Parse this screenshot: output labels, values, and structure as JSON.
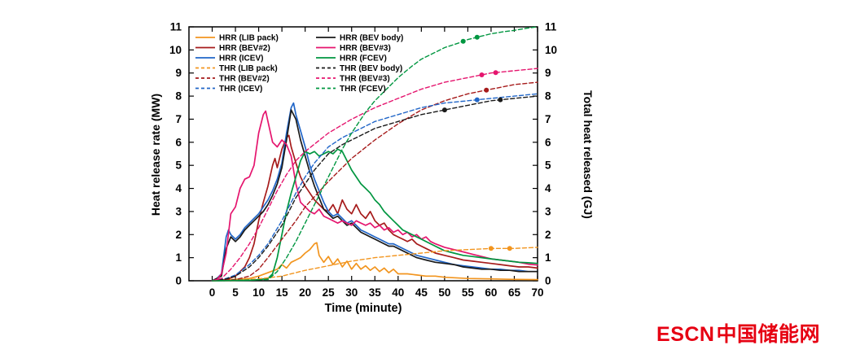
{
  "watermark": {
    "brand": "ESCN",
    "brand_cn": "中国储能网",
    "color": "#e60012"
  },
  "chart_data": {
    "type": "line",
    "title": "",
    "xlabel": "Time (minute)",
    "ylabel_left": "Heat release rate (MW)",
    "ylabel_right": "Total heat released (GJ)",
    "xlim": [
      -5,
      70
    ],
    "ylim": [
      0,
      11
    ],
    "x_ticks": [
      0,
      5,
      10,
      15,
      20,
      25,
      30,
      35,
      40,
      45,
      50,
      55,
      60,
      65,
      70
    ],
    "y_ticks": [
      0,
      1,
      2,
      3,
      4,
      5,
      6,
      7,
      8,
      9,
      10,
      11
    ],
    "grid": false,
    "legend": {
      "position": "top-left",
      "columns": [
        [
          "HRR (LIB pack)",
          "HRR (BEV#2)",
          "HRR (ICEV)",
          "THR (LIB pack)",
          "THR (BEV#2)",
          "THR (ICEV)"
        ],
        [
          "HRR (BEV body)",
          "HRR (BEV#3)",
          "HRR (FCEV)",
          "THR (BEV body)",
          "THR (BEV#3)",
          "THR (FCEV)"
        ]
      ]
    },
    "series": [
      {
        "name": "HRR (LIB pack)",
        "axis": "left",
        "dash": false,
        "color": "#f2951f",
        "x": [
          0,
          4,
          8,
          10,
          12,
          14,
          15,
          16,
          17,
          18,
          19,
          20,
          21,
          22,
          22.5,
          23,
          24,
          25,
          26,
          27,
          28,
          29,
          30,
          31,
          32,
          33,
          34,
          35,
          36,
          37,
          38,
          39,
          40,
          42,
          44,
          46,
          48,
          50,
          55,
          60,
          65,
          70
        ],
        "y": [
          0,
          0.05,
          0.1,
          0.2,
          0.35,
          0.5,
          0.7,
          0.55,
          0.8,
          0.9,
          1.0,
          1.2,
          1.35,
          1.6,
          1.65,
          1.1,
          0.8,
          1.05,
          0.7,
          0.95,
          0.6,
          0.85,
          0.5,
          0.75,
          0.5,
          0.65,
          0.45,
          0.6,
          0.4,
          0.55,
          0.35,
          0.5,
          0.3,
          0.3,
          0.25,
          0.2,
          0.2,
          0.15,
          0.1,
          0.08,
          0.06,
          0.05
        ]
      },
      {
        "name": "HRR (BEV#2)",
        "axis": "left",
        "dash": false,
        "color": "#a61b1b",
        "x": [
          0,
          3,
          5,
          7,
          8,
          9,
          10,
          11,
          12,
          13,
          13.5,
          14,
          15,
          16,
          16.5,
          17,
          18,
          19,
          20,
          21,
          22,
          23,
          24,
          25,
          26,
          27,
          28,
          29,
          30,
          31,
          32,
          33,
          34,
          35,
          36,
          37,
          38,
          39,
          40,
          41,
          42,
          43,
          44,
          45,
          46,
          48,
          50,
          52,
          54,
          56,
          58,
          60,
          62,
          64,
          66,
          68,
          70
        ],
        "y": [
          0,
          0.05,
          0.2,
          0.6,
          1.0,
          1.6,
          2.6,
          3.4,
          4.1,
          5.0,
          5.3,
          4.9,
          5.7,
          6.2,
          6.3,
          5.8,
          5.1,
          4.5,
          4.1,
          3.8,
          3.5,
          3.3,
          3.1,
          3.0,
          3.3,
          2.9,
          3.5,
          3.1,
          2.9,
          3.3,
          2.9,
          2.7,
          3.0,
          2.6,
          2.4,
          2.5,
          2.2,
          2.0,
          1.9,
          1.8,
          1.7,
          1.8,
          1.6,
          1.5,
          1.4,
          1.2,
          1.1,
          1.0,
          0.9,
          0.85,
          0.8,
          0.75,
          0.7,
          0.65,
          0.6,
          0.6,
          0.55
        ]
      },
      {
        "name": "HRR (ICEV)",
        "axis": "left",
        "dash": false,
        "color": "#2166c8",
        "x": [
          0,
          1,
          2,
          3,
          3.5,
          4,
          5,
          6,
          7,
          8,
          9,
          10,
          11,
          12,
          13,
          14,
          15,
          16,
          17,
          17.5,
          18,
          19,
          20,
          21,
          22,
          23,
          24,
          25,
          26,
          27,
          28,
          29,
          30,
          31,
          32,
          33,
          34,
          35,
          36,
          37,
          38,
          39,
          40,
          42,
          44,
          46,
          48,
          50,
          52,
          54,
          56,
          58,
          60,
          62,
          64,
          66,
          68,
          70
        ],
        "y": [
          0,
          0.1,
          0.3,
          1.9,
          2.2,
          2.0,
          1.8,
          2.0,
          2.3,
          2.5,
          2.7,
          2.9,
          3.2,
          3.5,
          3.9,
          4.4,
          5.1,
          6.4,
          7.5,
          7.7,
          7.2,
          6.5,
          5.8,
          5.0,
          4.4,
          3.9,
          3.4,
          3.0,
          2.8,
          2.9,
          2.7,
          2.5,
          2.6,
          2.4,
          2.2,
          2.1,
          2.0,
          1.9,
          1.8,
          1.7,
          1.6,
          1.6,
          1.5,
          1.3,
          1.1,
          1.0,
          0.9,
          0.8,
          0.7,
          0.65,
          0.6,
          0.55,
          0.5,
          0.5,
          0.45,
          0.45,
          0.4,
          0.4
        ]
      },
      {
        "name": "HRR (BEV body)",
        "axis": "left",
        "dash": false,
        "color": "#1a1a1a",
        "x": [
          0,
          2,
          3,
          4,
          5,
          6,
          7,
          8,
          9,
          10,
          11,
          12,
          13,
          14,
          15,
          16,
          17,
          18,
          19,
          20,
          21,
          22,
          23,
          24,
          25,
          26,
          27,
          28,
          29,
          30,
          31,
          32,
          33,
          34,
          35,
          36,
          37,
          38,
          39,
          40,
          42,
          44,
          46,
          48,
          50,
          52,
          54,
          56,
          58,
          60,
          62,
          64,
          66,
          68,
          70
        ],
        "y": [
          0,
          0.2,
          1.4,
          1.9,
          1.7,
          1.9,
          2.2,
          2.4,
          2.6,
          2.8,
          3.0,
          3.3,
          3.7,
          4.2,
          4.9,
          6.1,
          7.4,
          7.0,
          6.1,
          5.4,
          4.7,
          4.1,
          3.6,
          3.1,
          2.9,
          2.7,
          2.8,
          2.6,
          2.4,
          2.5,
          2.3,
          2.1,
          2.0,
          1.9,
          1.8,
          1.7,
          1.6,
          1.5,
          1.5,
          1.4,
          1.2,
          1.0,
          0.9,
          0.8,
          0.75,
          0.7,
          0.6,
          0.55,
          0.5,
          0.5,
          0.45,
          0.45,
          0.4,
          0.4,
          0.4
        ]
      },
      {
        "name": "HRR (BEV#3)",
        "axis": "left",
        "dash": false,
        "color": "#e5156e",
        "x": [
          0,
          1,
          2,
          3,
          4,
          5,
          6,
          7,
          8,
          9,
          10,
          11,
          11.5,
          12,
          13,
          14,
          15,
          16,
          17,
          18,
          19,
          20,
          21,
          22,
          23,
          24,
          25,
          26,
          27,
          28,
          29,
          30,
          31,
          32,
          33,
          34,
          35,
          36,
          37,
          38,
          39,
          40,
          41,
          42,
          43,
          44,
          45,
          46,
          47,
          48,
          50,
          52,
          54,
          56,
          58,
          60,
          62,
          64,
          66,
          68,
          70
        ],
        "y": [
          0,
          0.05,
          0.3,
          1.2,
          2.9,
          3.2,
          4.0,
          4.4,
          4.5,
          5.0,
          6.4,
          7.2,
          7.35,
          6.9,
          6.0,
          5.8,
          6.1,
          5.9,
          5.4,
          4.2,
          3.4,
          3.2,
          3.0,
          2.9,
          3.1,
          2.8,
          2.7,
          2.6,
          2.5,
          2.6,
          2.5,
          2.4,
          2.6,
          2.5,
          2.4,
          2.5,
          2.3,
          2.4,
          2.2,
          2.3,
          2.1,
          2.2,
          2.0,
          2.1,
          1.9,
          2.0,
          1.8,
          1.9,
          1.7,
          1.6,
          1.45,
          1.35,
          1.25,
          1.15,
          1.05,
          0.95,
          0.9,
          0.85,
          0.8,
          0.72,
          0.68
        ]
      },
      {
        "name": "HRR (FCEV)",
        "axis": "left",
        "dash": false,
        "color": "#009640",
        "x": [
          0,
          8,
          10,
          12,
          13,
          14,
          15,
          16,
          17,
          18,
          19,
          20,
          21,
          22,
          23,
          24,
          25,
          26,
          27,
          28,
          29,
          30,
          31,
          32,
          33,
          34,
          35,
          36,
          37,
          38,
          39,
          40,
          41,
          42,
          43,
          44,
          45,
          46,
          47,
          48,
          49,
          50,
          52,
          54,
          56,
          58,
          60,
          62,
          64,
          66,
          68,
          70
        ],
        "y": [
          0,
          0.02,
          0.05,
          0.1,
          0.3,
          1.0,
          2.0,
          3.0,
          3.8,
          4.5,
          5.2,
          5.6,
          5.5,
          5.6,
          5.4,
          5.5,
          5.6,
          5.5,
          5.7,
          5.6,
          5.2,
          4.8,
          4.5,
          4.2,
          4.0,
          3.8,
          3.5,
          3.3,
          3.0,
          2.8,
          2.6,
          2.4,
          2.2,
          2.1,
          2.0,
          1.9,
          1.8,
          1.7,
          1.6,
          1.5,
          1.4,
          1.3,
          1.2,
          1.1,
          1.05,
          1.0,
          0.95,
          0.9,
          0.85,
          0.8,
          0.78,
          0.75
        ]
      },
      {
        "name": "THR (LIB pack)",
        "axis": "right",
        "dash": true,
        "color": "#f2951f",
        "x": [
          0,
          5,
          10,
          15,
          20,
          25,
          30,
          35,
          40,
          45,
          50,
          55,
          60,
          65,
          70
        ],
        "y": [
          0,
          0.02,
          0.08,
          0.2,
          0.45,
          0.65,
          0.85,
          1.0,
          1.1,
          1.2,
          1.3,
          1.35,
          1.4,
          1.4,
          1.45
        ],
        "markers": [
          60,
          64
        ]
      },
      {
        "name": "THR (BEV#2)",
        "axis": "right",
        "dash": true,
        "color": "#a61b1b",
        "x": [
          0,
          5,
          8,
          10,
          12,
          15,
          18,
          20,
          25,
          30,
          35,
          40,
          45,
          50,
          55,
          60,
          65,
          70
        ],
        "y": [
          0,
          0.05,
          0.2,
          0.5,
          1.0,
          1.8,
          2.6,
          3.2,
          4.3,
          5.3,
          6.1,
          6.8,
          7.4,
          7.8,
          8.1,
          8.3,
          8.5,
          8.6
        ],
        "markers": [
          59
        ]
      },
      {
        "name": "THR (ICEV)",
        "axis": "right",
        "dash": true,
        "color": "#2166c8",
        "x": [
          0,
          3,
          5,
          8,
          10,
          12,
          15,
          18,
          20,
          22,
          25,
          28,
          30,
          35,
          40,
          45,
          50,
          55,
          60,
          65,
          70
        ],
        "y": [
          0,
          0.1,
          0.25,
          0.7,
          1.1,
          1.6,
          2.6,
          3.8,
          4.5,
          5.1,
          5.8,
          6.2,
          6.4,
          6.9,
          7.2,
          7.5,
          7.7,
          7.8,
          7.9,
          8.0,
          8.1
        ],
        "markers": [
          57
        ]
      },
      {
        "name": "THR (BEV body)",
        "axis": "right",
        "dash": true,
        "color": "#1a1a1a",
        "x": [
          0,
          3,
          5,
          8,
          10,
          12,
          15,
          18,
          20,
          22,
          25,
          28,
          30,
          35,
          40,
          45,
          50,
          55,
          60,
          65,
          70
        ],
        "y": [
          0,
          0.08,
          0.2,
          0.6,
          1.0,
          1.5,
          2.4,
          3.6,
          4.2,
          4.8,
          5.5,
          5.9,
          6.1,
          6.6,
          6.9,
          7.2,
          7.4,
          7.6,
          7.8,
          7.9,
          8.0
        ],
        "markers": [
          50,
          62
        ]
      },
      {
        "name": "THR (BEV#3)",
        "axis": "right",
        "dash": true,
        "color": "#e5156e",
        "x": [
          0,
          2,
          4,
          6,
          8,
          10,
          12,
          14,
          16,
          18,
          20,
          25,
          30,
          35,
          40,
          45,
          50,
          55,
          60,
          65,
          70
        ],
        "y": [
          0,
          0.1,
          0.5,
          1.0,
          1.6,
          2.3,
          3.1,
          3.9,
          4.6,
          5.2,
          5.6,
          6.4,
          7.0,
          7.5,
          7.9,
          8.3,
          8.6,
          8.8,
          9.0,
          9.1,
          9.2
        ],
        "markers": [
          58,
          61
        ]
      },
      {
        "name": "THR (FCEV)",
        "axis": "right",
        "dash": true,
        "color": "#009640",
        "x": [
          0,
          12,
          14,
          16,
          18,
          20,
          22,
          25,
          28,
          30,
          33,
          35,
          38,
          40,
          43,
          45,
          48,
          50,
          53,
          55,
          58,
          60,
          63,
          65,
          68,
          70
        ],
        "y": [
          0,
          0.05,
          0.4,
          1.0,
          1.7,
          2.5,
          3.3,
          4.5,
          5.7,
          6.4,
          7.3,
          7.8,
          8.4,
          8.8,
          9.3,
          9.6,
          9.9,
          10.1,
          10.3,
          10.45,
          10.6,
          10.7,
          10.8,
          10.85,
          10.95,
          11.0
        ],
        "markers": [
          54,
          57
        ]
      }
    ]
  }
}
